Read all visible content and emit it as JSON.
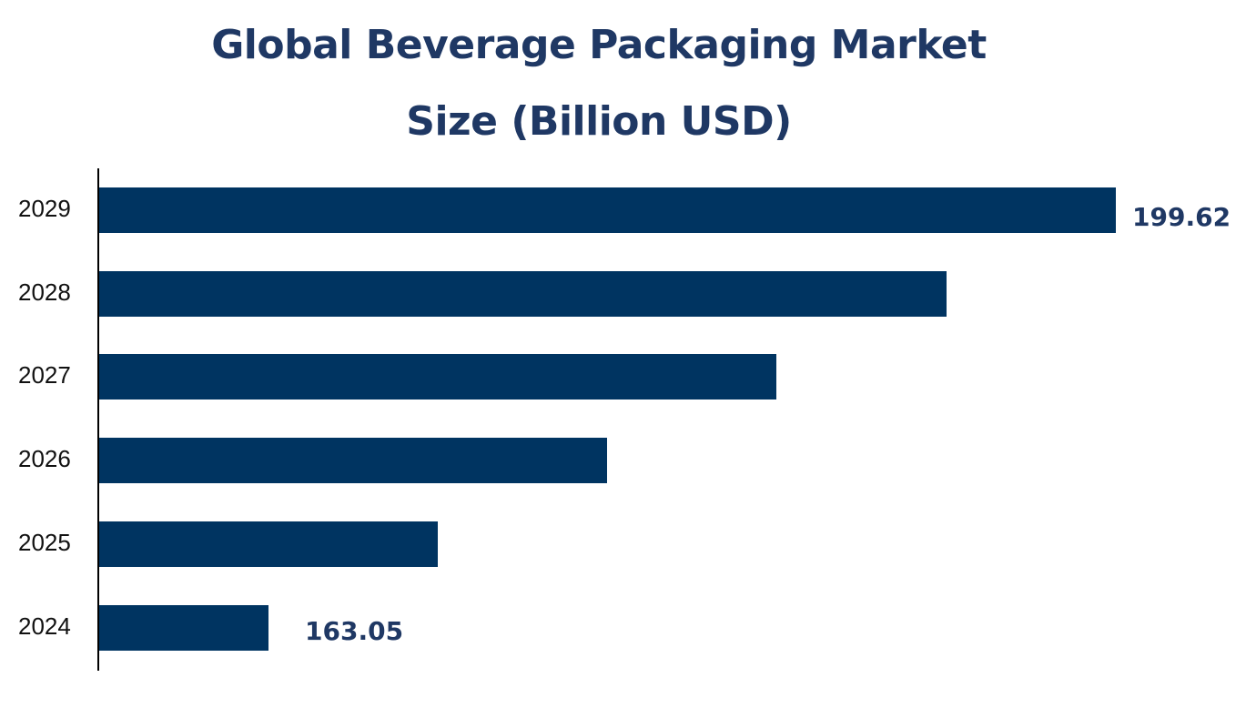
{
  "chart_data": {
    "type": "bar",
    "orientation": "horizontal",
    "title": "Global Beverage Packaging Market Size (Billion USD)",
    "title_lines": [
      "Global Beverage Packaging Market",
      "Size (Billion USD)"
    ],
    "categories": [
      "2029",
      "2028",
      "2027",
      "2026",
      "2025",
      "2024"
    ],
    "values": [
      199.62,
      192.3,
      184.98,
      177.67,
      170.36,
      163.05
    ],
    "data_labels": {
      "2029": "199.62",
      "2024": "163.05"
    },
    "xlabel": "",
    "ylabel": "",
    "bar_color": "#003461",
    "label_color": "#1f3864",
    "grid": false,
    "legend": null
  }
}
